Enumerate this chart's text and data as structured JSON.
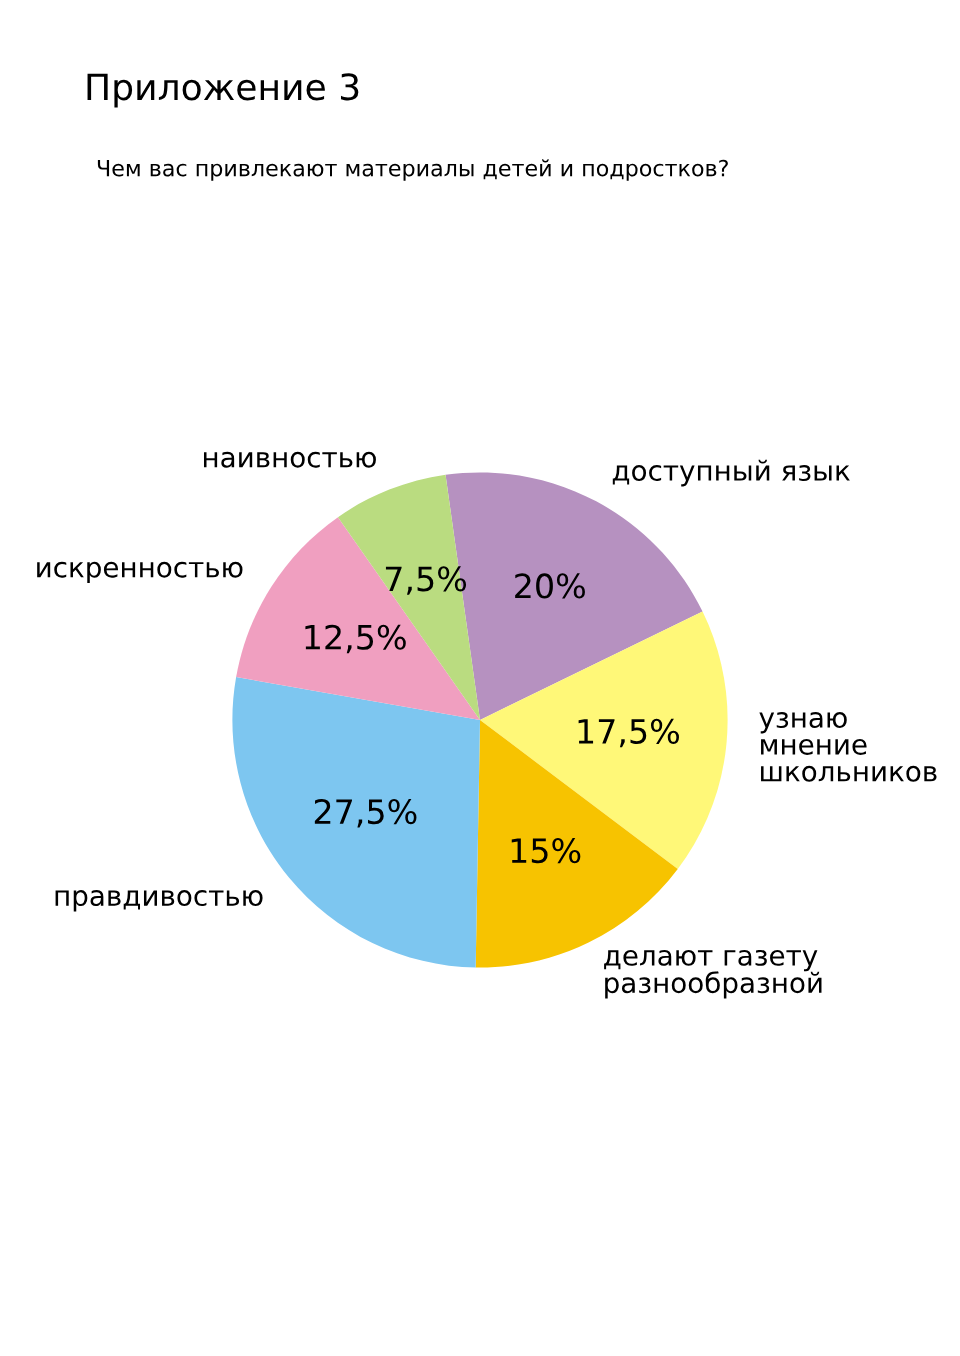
{
  "chart_data": {
    "type": "pie",
    "title": "Приложение 3",
    "subtitle": "Чем вас привлекают материалы детей и подростков?",
    "categories": [
      "доступный язык",
      "узнаю\nмнение\nшкольников",
      "делают газету\nразнообразной",
      "правдивостью",
      "искренностью",
      "наивностью"
    ],
    "values": [
      20,
      17.5,
      15,
      27.5,
      12.5,
      7.5
    ],
    "value_labels": [
      "20%",
      "17,5%",
      "15%",
      "27,5%",
      "12,5%",
      "7,5%"
    ],
    "colors": [
      "#b691c0",
      "#fff878",
      "#f7c300",
      "#7dc6f0",
      "#f09fc0",
      "#badc80"
    ]
  }
}
